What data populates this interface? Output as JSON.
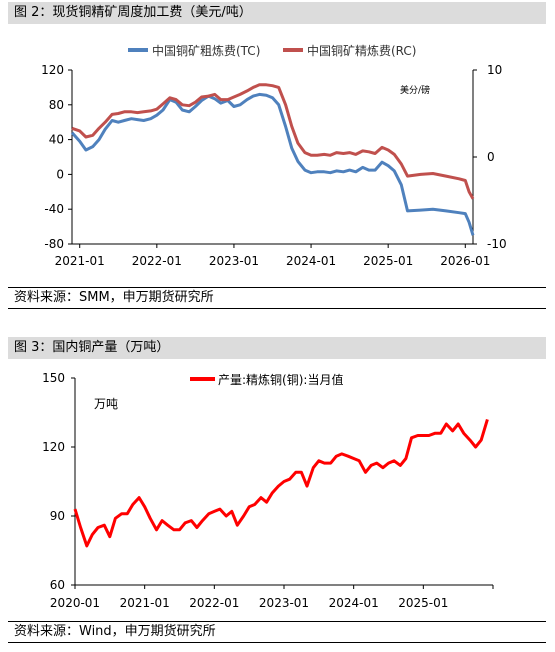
{
  "figure2": {
    "header": "图 2：现货铜精矿周度加工费（美元/吨）",
    "source": "资料来源：SMM，申万期货研究所"
  },
  "figure3": {
    "header": "图 3：国内铜产量（万吨）",
    "source": "资料来源：Wind，申万期货研究所"
  },
  "chart_data": [
    {
      "type": "line",
      "left_axis": {
        "ylim": [
          -80,
          120
        ],
        "ticks": [
          120,
          80,
          40,
          0,
          -40,
          -80
        ]
      },
      "right_axis": {
        "unit_label": "美分/磅",
        "ylim": [
          -10,
          10
        ],
        "ticks": [
          10,
          0,
          -10
        ]
      },
      "x_ticks": [
        "2021-01",
        "2022-01",
        "2023-01",
        "2024-01",
        "2025-01",
        "2026-01"
      ],
      "x_range": [
        2020.9,
        2026.1
      ],
      "legend_position": "top",
      "grid": false,
      "series": [
        {
          "name": "中国铜矿粗炼费(TC)",
          "color": "#4f81bd",
          "axis": "left",
          "x": [
            2020.9,
            2021.0,
            2021.08,
            2021.17,
            2021.25,
            2021.33,
            2021.42,
            2021.5,
            2021.58,
            2021.67,
            2021.75,
            2021.83,
            2021.92,
            2022.0,
            2022.08,
            2022.17,
            2022.25,
            2022.33,
            2022.42,
            2022.5,
            2022.58,
            2022.67,
            2022.75,
            2022.83,
            2022.92,
            2023.0,
            2023.08,
            2023.17,
            2023.25,
            2023.33,
            2023.42,
            2023.5,
            2023.58,
            2023.67,
            2023.75,
            2023.83,
            2023.92,
            2024.0,
            2024.08,
            2024.17,
            2024.25,
            2024.33,
            2024.42,
            2024.5,
            2024.58,
            2024.67,
            2024.75,
            2024.83,
            2024.92,
            2025.0,
            2025.08,
            2025.17,
            2025.25,
            2025.42,
            2025.58,
            2025.75,
            2025.92,
            2026.0,
            2026.05,
            2026.1
          ],
          "y": [
            48,
            38,
            28,
            32,
            40,
            52,
            62,
            60,
            62,
            64,
            63,
            62,
            64,
            68,
            74,
            86,
            83,
            74,
            72,
            78,
            85,
            90,
            87,
            82,
            85,
            78,
            80,
            86,
            90,
            92,
            91,
            88,
            80,
            55,
            30,
            15,
            5,
            2,
            3,
            3,
            2,
            4,
            3,
            5,
            3,
            8,
            5,
            5,
            14,
            10,
            4,
            -12,
            -42,
            -41,
            -40,
            -42,
            -44,
            -45,
            -55,
            -70
          ]
        },
        {
          "name": "中国铜矿精炼费(RC)",
          "color": "#c0504d",
          "axis": "right",
          "x": [
            2020.9,
            2021.0,
            2021.08,
            2021.17,
            2021.25,
            2021.33,
            2021.42,
            2021.5,
            2021.58,
            2021.67,
            2021.75,
            2021.83,
            2021.92,
            2022.0,
            2022.08,
            2022.17,
            2022.25,
            2022.33,
            2022.42,
            2022.5,
            2022.58,
            2022.67,
            2022.75,
            2022.83,
            2022.92,
            2023.0,
            2023.08,
            2023.17,
            2023.25,
            2023.33,
            2023.42,
            2023.5,
            2023.58,
            2023.67,
            2023.75,
            2023.83,
            2023.92,
            2024.0,
            2024.08,
            2024.17,
            2024.25,
            2024.33,
            2024.42,
            2024.5,
            2024.58,
            2024.67,
            2024.75,
            2024.83,
            2024.92,
            2025.0,
            2025.08,
            2025.17,
            2025.25,
            2025.42,
            2025.58,
            2025.75,
            2025.92,
            2026.0,
            2026.05,
            2026.1
          ],
          "y": [
            3.3,
            3.0,
            2.3,
            2.5,
            3.3,
            4.0,
            4.9,
            5.0,
            5.2,
            5.2,
            5.1,
            5.2,
            5.3,
            5.5,
            6.1,
            6.8,
            6.6,
            6.0,
            5.9,
            6.3,
            6.9,
            7.0,
            7.2,
            6.6,
            6.6,
            6.9,
            7.2,
            7.6,
            8.0,
            8.3,
            8.3,
            8.2,
            8.0,
            6.0,
            3.5,
            1.6,
            0.5,
            0.2,
            0.2,
            0.3,
            0.2,
            0.5,
            0.4,
            0.5,
            0.3,
            0.7,
            0.6,
            0.4,
            1.1,
            0.8,
            0.3,
            -0.8,
            -2.2,
            -2.0,
            -1.9,
            -2.2,
            -2.5,
            -2.7,
            -4.0,
            -4.8
          ]
        }
      ]
    },
    {
      "type": "line",
      "ylim": [
        60,
        150
      ],
      "y_ticks": [
        150,
        120,
        90,
        60
      ],
      "unit_label": "万吨",
      "x_ticks": [
        "2020-01",
        "2021-01",
        "2022-01",
        "2023-01",
        "2024-01",
        "2025-01"
      ],
      "x_range": [
        2020.0,
        2026.0
      ],
      "legend_position": "top",
      "grid": false,
      "series": [
        {
          "name": "产量:精炼铜(铜):当月值",
          "color": "#ff0000",
          "x": [
            2020.0,
            2020.08,
            2020.17,
            2020.25,
            2020.33,
            2020.42,
            2020.5,
            2020.58,
            2020.67,
            2020.75,
            2020.83,
            2020.92,
            2021.0,
            2021.08,
            2021.17,
            2021.25,
            2021.33,
            2021.42,
            2021.5,
            2021.58,
            2021.67,
            2021.75,
            2021.83,
            2021.92,
            2022.0,
            2022.08,
            2022.17,
            2022.25,
            2022.33,
            2022.42,
            2022.5,
            2022.58,
            2022.67,
            2022.75,
            2022.83,
            2022.92,
            2023.0,
            2023.08,
            2023.17,
            2023.25,
            2023.33,
            2023.42,
            2023.5,
            2023.58,
            2023.67,
            2023.75,
            2023.83,
            2023.92,
            2024.0,
            2024.08,
            2024.17,
            2024.25,
            2024.33,
            2024.42,
            2024.5,
            2024.58,
            2024.67,
            2024.75,
            2024.83,
            2024.92,
            2025.0,
            2025.08,
            2025.17,
            2025.25,
            2025.33,
            2025.42,
            2025.5,
            2025.58,
            2025.67,
            2025.75,
            2025.83,
            2025.92
          ],
          "y": [
            93,
            85,
            77,
            82,
            85,
            86,
            81,
            89,
            91,
            91,
            95,
            98,
            94,
            89,
            84,
            88,
            86,
            84,
            84,
            87,
            88,
            85,
            88,
            91,
            92,
            93,
            90,
            92,
            86,
            90,
            94,
            95,
            98,
            96,
            100,
            103,
            105,
            106,
            109,
            109,
            103,
            111,
            114,
            113,
            113,
            116,
            117,
            116,
            115,
            114,
            109,
            112,
            113,
            111,
            113,
            114,
            112,
            115,
            124,
            125,
            125,
            125,
            126,
            126,
            130,
            127,
            130,
            126,
            123,
            120,
            123,
            132
          ]
        }
      ]
    }
  ]
}
